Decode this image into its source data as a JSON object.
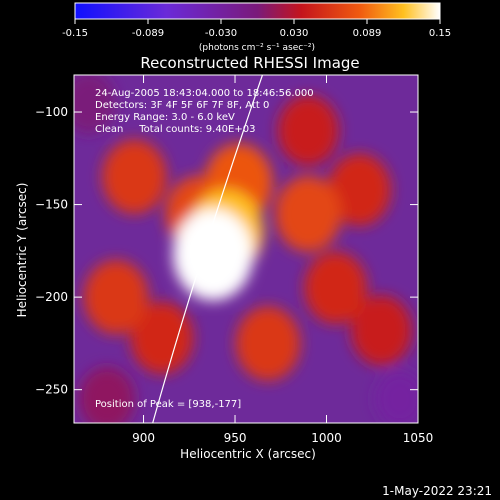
{
  "chart_data": {
    "type": "heatmap",
    "title": "Reconstructed RHESSI Image",
    "xlabel": "Heliocentric X (arcsec)",
    "ylabel": "Heliocentric Y (arcsec)",
    "xlim": [
      862,
      1050
    ],
    "ylim": [
      -268,
      -80
    ],
    "xticks": [
      900,
      950,
      1000,
      1050
    ],
    "yticks": [
      -100,
      -150,
      -200,
      -250
    ],
    "colorbar": {
      "ticks": [
        "-0.15",
        "-0.089",
        "-0.030",
        "0.030",
        "0.089",
        "0.15"
      ],
      "range": [
        -0.15,
        0.15
      ],
      "unit_label": "(photons cm⁻² s⁻¹ asec⁻²)"
    },
    "annotations": [
      "24-Aug-2005 18:43:04.000 to 18:46:56.000",
      "Detectors: 3F 4F 5F 6F 7F 8F, Att 0",
      "Energy Range: 3.0 - 6.0 keV",
      "Clean     Total counts: 9.40E+03"
    ],
    "peak_label": "Position of Peak = [938,-177]",
    "peak": [
      938,
      -177
    ],
    "sources": [
      {
        "x": 938,
        "y": -177,
        "value": 0.15
      },
      {
        "x": 945,
        "y": -165,
        "value": 0.12
      },
      {
        "x": 952,
        "y": -138,
        "value": 0.08
      },
      {
        "x": 930,
        "y": -155,
        "value": 0.07
      },
      {
        "x": 895,
        "y": -135,
        "value": 0.06
      },
      {
        "x": 885,
        "y": -200,
        "value": 0.06
      },
      {
        "x": 910,
        "y": -222,
        "value": 0.05
      },
      {
        "x": 968,
        "y": -225,
        "value": 0.06
      },
      {
        "x": 990,
        "y": -155,
        "value": 0.07
      },
      {
        "x": 1005,
        "y": -195,
        "value": 0.05
      },
      {
        "x": 1018,
        "y": -142,
        "value": 0.05
      },
      {
        "x": 990,
        "y": -110,
        "value": 0.04
      },
      {
        "x": 1030,
        "y": -218,
        "value": 0.04
      },
      {
        "x": 880,
        "y": -255,
        "value": 0.01
      },
      {
        "x": 1040,
        "y": -255,
        "value": -0.03
      },
      {
        "x": 870,
        "y": -95,
        "value": 0.0
      }
    ],
    "limb_curve": [
      [
        905,
        -268
      ],
      [
        930,
        -180
      ],
      [
        965,
        -80
      ]
    ]
  },
  "footer_timestamp": "1-May-2022 23:21"
}
